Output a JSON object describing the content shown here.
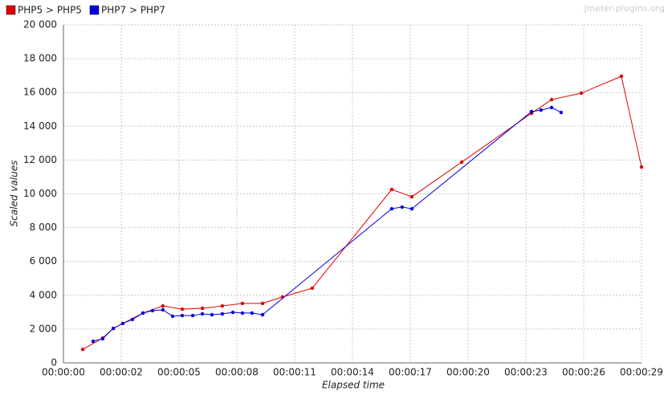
{
  "chart_data": {
    "type": "line",
    "watermark": "jmeter-plugins.org",
    "xlabel": "Elapsed time",
    "ylabel": "Scaled values",
    "xlim": [
      0,
      29
    ],
    "xticks": [
      {
        "value": 0,
        "label": "00:00:00"
      },
      {
        "value": 2.9,
        "label": "00:00:02"
      },
      {
        "value": 5.8,
        "label": "00:00:05"
      },
      {
        "value": 8.7,
        "label": "00:00:08"
      },
      {
        "value": 11.6,
        "label": "00:00:11"
      },
      {
        "value": 14.5,
        "label": "00:00:14"
      },
      {
        "value": 17.4,
        "label": "00:00:17"
      },
      {
        "value": 20.3,
        "label": "00:00:20"
      },
      {
        "value": 23.2,
        "label": "00:00:23"
      },
      {
        "value": 26.1,
        "label": "00:00:26"
      },
      {
        "value": 29,
        "label": "00:00:29"
      }
    ],
    "ylim": [
      0,
      20000
    ],
    "yticks": [
      0,
      {
        "value": 2000,
        "label": "2 000"
      },
      {
        "value": 4000,
        "label": "4 000"
      },
      {
        "value": 6000,
        "label": "6 000"
      },
      {
        "value": 8000,
        "label": "8 000"
      },
      {
        "value": 10000,
        "label": "10 000"
      },
      {
        "value": 12000,
        "label": "12 000"
      },
      {
        "value": 14000,
        "label": "14 000"
      },
      {
        "value": 16000,
        "label": "16 000"
      },
      {
        "value": 18000,
        "label": "18 000"
      },
      {
        "value": 20000,
        "label": "20 000"
      }
    ],
    "grid": true,
    "series": [
      {
        "name": "PHP5 > PHP5",
        "color": "#e00000",
        "x": [
          0.97,
          1.97,
          2.5,
          3.99,
          4.99,
          5.96,
          6.97,
          7.97,
          8.98,
          9.99,
          10.99,
          12.48,
          16.47,
          17.48,
          19.98,
          23.48,
          24.49,
          25.98,
          27.99,
          29
        ],
        "values": [
          800,
          1470,
          2040,
          2950,
          3370,
          3180,
          3230,
          3370,
          3520,
          3520,
          3900,
          4420,
          10260,
          9830,
          11880,
          14770,
          15580,
          15960,
          16960,
          11590
        ]
      },
      {
        "name": "PHP7 > PHP7",
        "color": "#0000e0",
        "x": [
          1.49,
          1.97,
          2.5,
          2.98,
          3.46,
          3.99,
          4.47,
          4.99,
          5.48,
          5.96,
          6.49,
          6.97,
          7.45,
          7.97,
          8.5,
          8.98,
          9.46,
          9.99,
          16.47,
          16.99,
          17.48,
          23.48,
          23.96,
          24.49,
          24.97
        ],
        "values": [
          1280,
          1430,
          2040,
          2330,
          2570,
          2950,
          3090,
          3140,
          2760,
          2800,
          2800,
          2900,
          2850,
          2900,
          2990,
          2950,
          2950,
          2850,
          9120,
          9220,
          9120,
          14870,
          14960,
          15110,
          14820
        ]
      }
    ]
  }
}
